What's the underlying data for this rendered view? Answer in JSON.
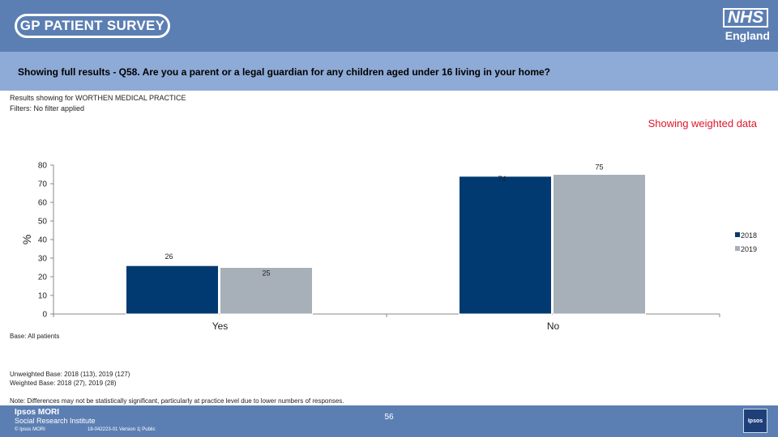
{
  "header": {
    "logo_text": "GP PATIENT SURVEY",
    "nhs_logo": "NHS",
    "nhs_region": "England"
  },
  "question": "Showing full results - Q58.  Are you a parent or a legal guardian for any children aged under 16 living in your home?",
  "results_for": "Results showing for WORTHEN MEDICAL PRACTICE",
  "filters": "Filters: No filter applied",
  "weighted_label": "Showing weighted data",
  "chart_data": {
    "type": "bar",
    "categories": [
      "Yes",
      "No"
    ],
    "series": [
      {
        "name": "2018",
        "values": [
          26,
          74
        ],
        "color": "#003a70"
      },
      {
        "name": "2019",
        "values": [
          25,
          75
        ],
        "color": "#a7afb8"
      }
    ],
    "ylabel": "%",
    "ylim": [
      0,
      80
    ],
    "yticks": [
      0,
      10,
      20,
      30,
      40,
      50,
      60,
      70,
      80
    ],
    "legend": "right"
  },
  "base_note": "Base: All patients",
  "unweighted_base": "Unweighted Base: 2018 (113), 2019 (127)",
  "weighted_base": "Weighted Base: 2018 (27), 2019 (28)",
  "note": "Note: Differences may not be statistically significant, particularly at practice level due to lower numbers of responses.",
  "footer": {
    "org_name": "Ipsos MORI",
    "org_sub": "Social Research Institute",
    "copyright": "© Ipsos MORI",
    "job_number": "18-042223-01 Version 1| Public",
    "page_number": "56",
    "ipsos_logo": "Ipsos"
  }
}
